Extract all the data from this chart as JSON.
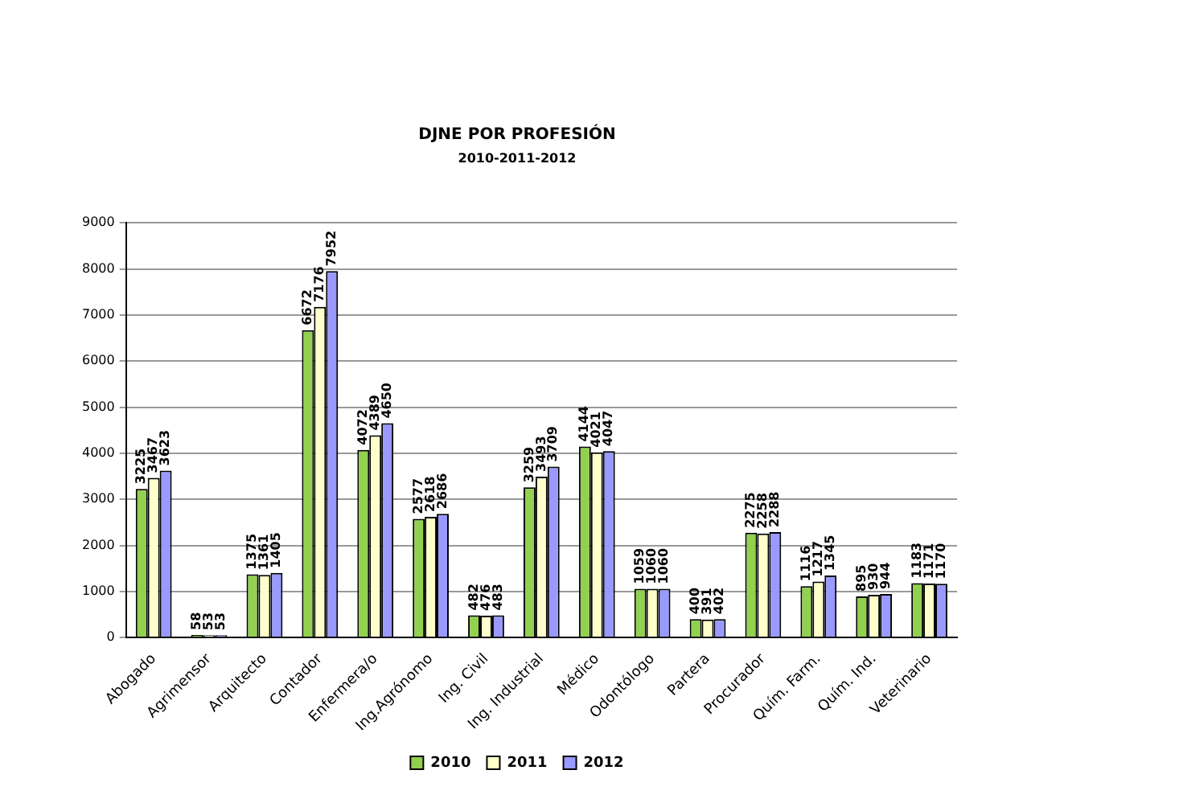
{
  "chart_data": {
    "type": "bar",
    "title": "DJNE POR PROFESIÓN",
    "subtitle": "2010-2011-2012",
    "categories": [
      "Abogado",
      "Agrimensor",
      "Arquitecto",
      "Contador",
      "Enfermera/o",
      "Ing.Agrónomo",
      "Ing. Civil",
      "Ing. Industrial",
      "Médico",
      "Odontólogo",
      "Partera",
      "Procurador",
      "Quím. Farm.",
      "Quím. Ind.",
      "Veterinario"
    ],
    "series": [
      {
        "name": "2010",
        "color": "#92d050",
        "values": [
          3225,
          58,
          1375,
          6672,
          4072,
          2577,
          482,
          3259,
          4144,
          1059,
          400,
          2275,
          1116,
          895,
          1183
        ]
      },
      {
        "name": "2011",
        "color": "#ffffcc",
        "values": [
          3467,
          53,
          1361,
          7176,
          4389,
          2618,
          476,
          3493,
          4021,
          1060,
          391,
          2258,
          1217,
          930,
          1171
        ]
      },
      {
        "name": "2012",
        "color": "#9999ff",
        "values": [
          3623,
          53,
          1405,
          7952,
          4650,
          2686,
          483,
          3709,
          4047,
          1060,
          402,
          2288,
          1345,
          944,
          1170
        ]
      }
    ],
    "ylim": [
      0,
      9000
    ],
    "yticks": [
      0,
      1000,
      2000,
      3000,
      4000,
      5000,
      6000,
      7000,
      8000,
      9000
    ],
    "grid": "y",
    "legend": "bottom",
    "data_labels": true
  }
}
